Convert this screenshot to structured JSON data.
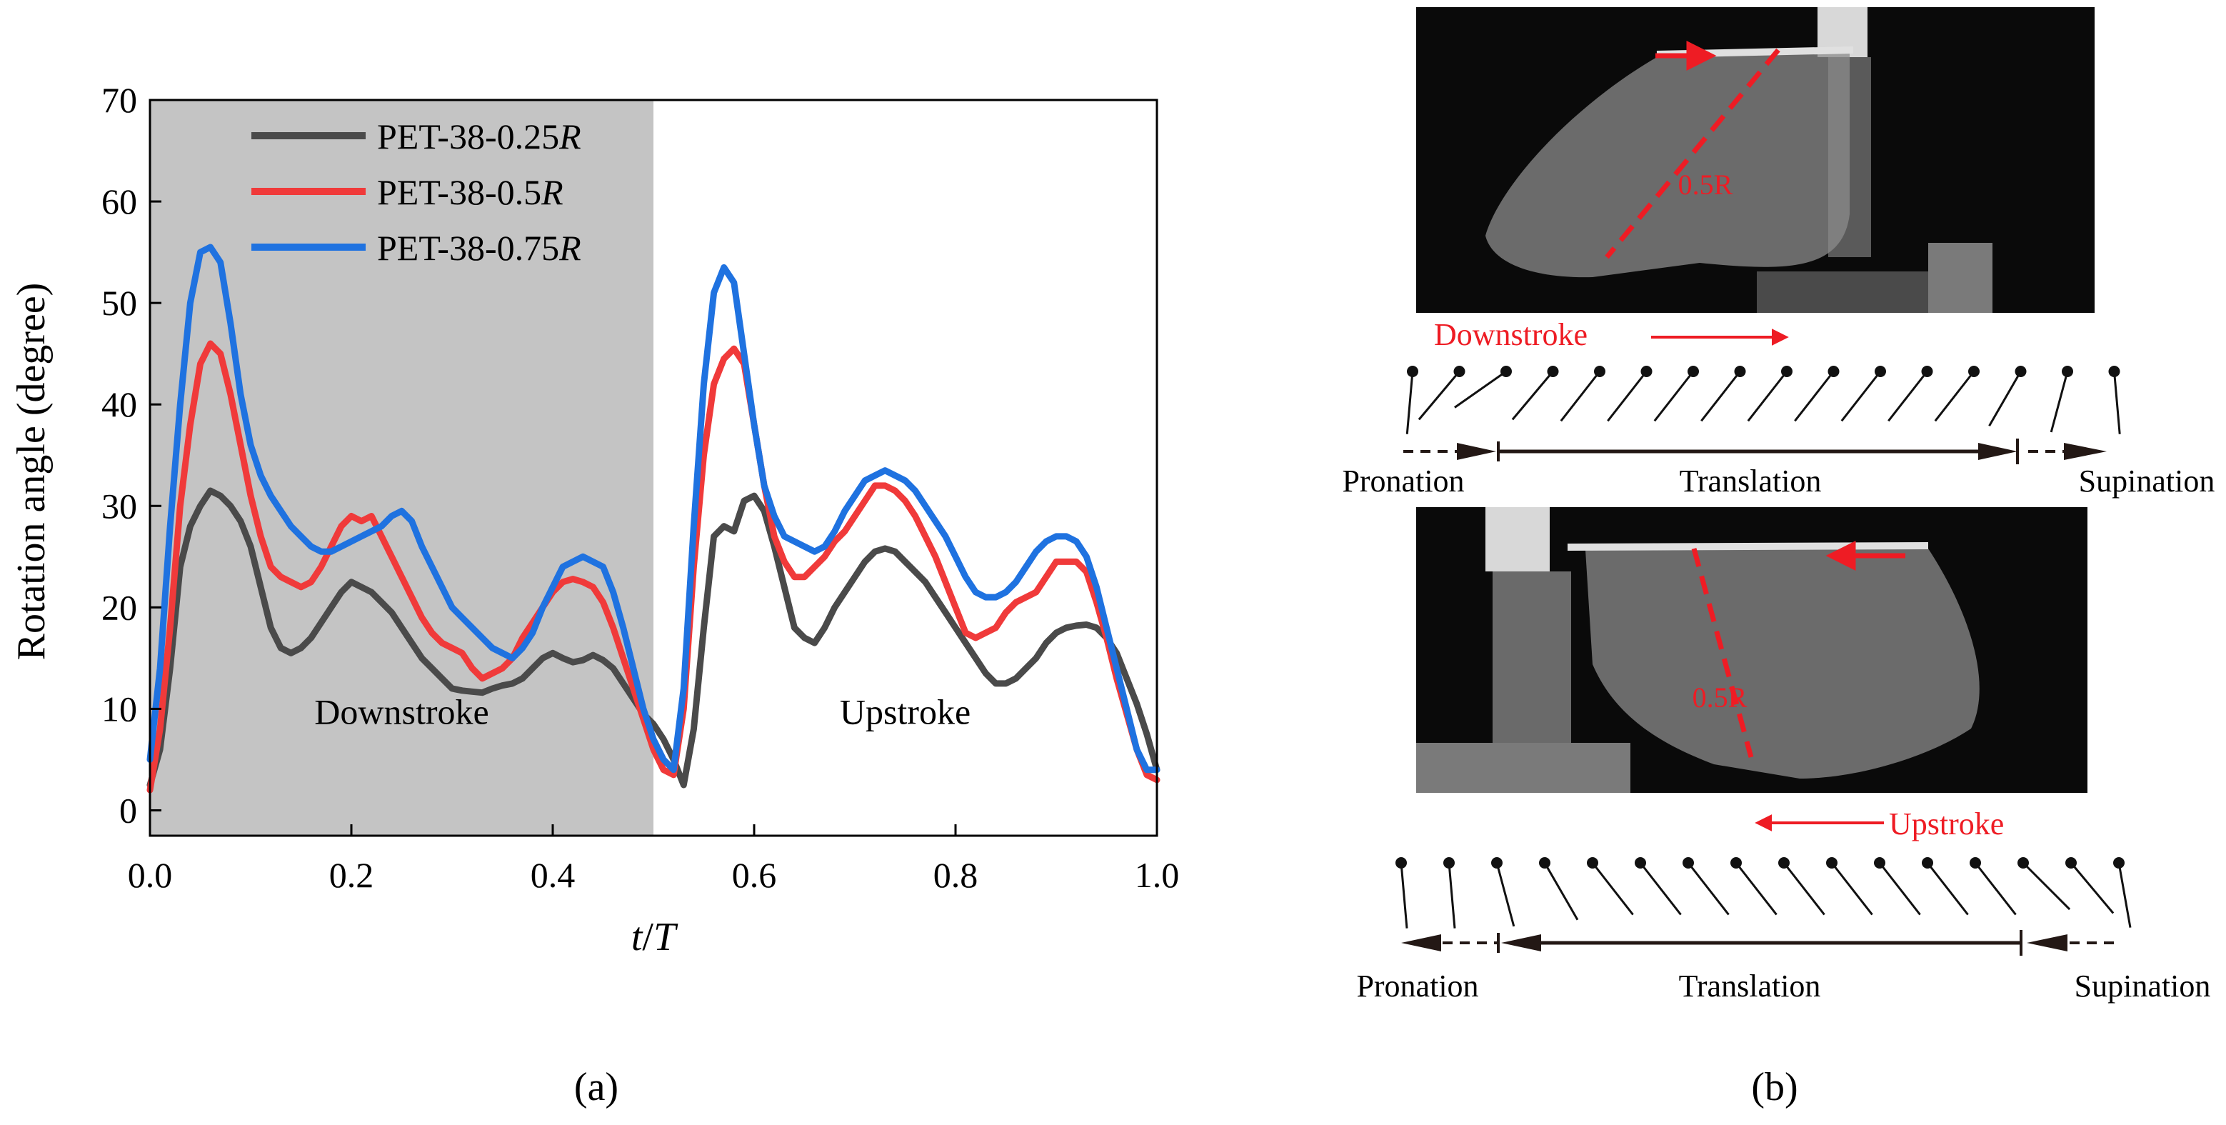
{
  "chart_data": {
    "type": "line",
    "panel_label": "(a)",
    "xlabel": "t/T",
    "xlabel_italic_parts": [
      "t",
      "T"
    ],
    "ylabel": "Rotation angle (degree)",
    "xlim": [
      0.0,
      1.0
    ],
    "ylim": [
      -2.5,
      70
    ],
    "xticks": [
      0.0,
      0.2,
      0.4,
      0.6,
      0.8,
      1.0
    ],
    "xtick_labels": [
      "0.0",
      "0.2",
      "0.4",
      "0.6",
      "0.8",
      "1.0"
    ],
    "yticks": [
      0,
      10,
      20,
      30,
      40,
      50,
      60,
      70
    ],
    "ytick_labels": [
      "0",
      "10",
      "20",
      "30",
      "40",
      "50",
      "60",
      "70"
    ],
    "shaded_region": {
      "x": [
        0.0,
        0.5
      ],
      "color": "#c4c4c4"
    },
    "annotations": [
      {
        "text": "Downstroke",
        "x": 0.25,
        "y": 8.5
      },
      {
        "text": "Upstroke",
        "x": 0.75,
        "y": 8.5
      }
    ],
    "series": [
      {
        "name_main": "PET-38-0.25",
        "name_italic": "R",
        "color": "#4a4a4a",
        "x": [
          0.0,
          0.01,
          0.02,
          0.03,
          0.04,
          0.05,
          0.06,
          0.07,
          0.08,
          0.09,
          0.1,
          0.11,
          0.12,
          0.13,
          0.14,
          0.15,
          0.16,
          0.17,
          0.18,
          0.19,
          0.2,
          0.21,
          0.22,
          0.23,
          0.24,
          0.25,
          0.26,
          0.27,
          0.28,
          0.29,
          0.3,
          0.31,
          0.32,
          0.33,
          0.34,
          0.35,
          0.36,
          0.37,
          0.38,
          0.39,
          0.4,
          0.41,
          0.42,
          0.43,
          0.44,
          0.45,
          0.46,
          0.47,
          0.48,
          0.49,
          0.5,
          0.51,
          0.52,
          0.53,
          0.54,
          0.55,
          0.56,
          0.57,
          0.58,
          0.59,
          0.6,
          0.61,
          0.62,
          0.63,
          0.64,
          0.65,
          0.66,
          0.67,
          0.68,
          0.69,
          0.7,
          0.71,
          0.72,
          0.73,
          0.74,
          0.75,
          0.76,
          0.77,
          0.78,
          0.79,
          0.8,
          0.81,
          0.82,
          0.83,
          0.84,
          0.85,
          0.86,
          0.87,
          0.88,
          0.89,
          0.9,
          0.91,
          0.92,
          0.93,
          0.94,
          0.95,
          0.96,
          0.97,
          0.98,
          0.99,
          1.0
        ],
        "values": [
          2.5,
          6,
          14,
          24,
          28,
          30,
          31.5,
          31,
          30,
          28.5,
          26,
          22,
          18,
          16,
          15.5,
          16,
          17,
          18.5,
          20,
          21.5,
          22.5,
          22,
          21.5,
          20.5,
          19.5,
          18,
          16.5,
          15,
          14,
          13,
          12,
          11.8,
          11.7,
          11.6,
          12,
          12.3,
          12.5,
          13,
          14,
          15,
          15.5,
          15,
          14.6,
          14.8,
          15.3,
          14.8,
          14,
          12.5,
          11,
          9.5,
          8.5,
          7,
          5,
          2.5,
          8,
          18,
          27,
          28,
          27.5,
          30.5,
          31,
          29.5,
          26,
          22,
          18,
          17,
          16.5,
          18,
          20,
          21.5,
          23,
          24.5,
          25.5,
          25.8,
          25.5,
          24.5,
          23.5,
          22.5,
          21,
          19.5,
          18,
          16.5,
          15,
          13.5,
          12.5,
          12.5,
          13,
          14,
          15,
          16.5,
          17.5,
          18,
          18.2,
          18.3,
          18,
          17,
          15.5,
          13,
          10.5,
          7.5,
          4
        ]
      },
      {
        "name_main": "PET-38-0.5",
        "name_italic": "R",
        "color": "#f03a3a",
        "x": [
          0.0,
          0.01,
          0.02,
          0.03,
          0.04,
          0.05,
          0.06,
          0.07,
          0.08,
          0.09,
          0.1,
          0.11,
          0.12,
          0.13,
          0.14,
          0.15,
          0.16,
          0.17,
          0.18,
          0.19,
          0.2,
          0.21,
          0.22,
          0.23,
          0.24,
          0.25,
          0.26,
          0.27,
          0.28,
          0.29,
          0.3,
          0.31,
          0.32,
          0.33,
          0.34,
          0.35,
          0.36,
          0.37,
          0.38,
          0.39,
          0.4,
          0.41,
          0.42,
          0.43,
          0.44,
          0.45,
          0.46,
          0.47,
          0.48,
          0.49,
          0.5,
          0.51,
          0.52,
          0.53,
          0.54,
          0.55,
          0.56,
          0.57,
          0.58,
          0.59,
          0.6,
          0.61,
          0.62,
          0.63,
          0.64,
          0.65,
          0.66,
          0.67,
          0.68,
          0.69,
          0.7,
          0.71,
          0.72,
          0.73,
          0.74,
          0.75,
          0.76,
          0.77,
          0.78,
          0.79,
          0.8,
          0.81,
          0.82,
          0.83,
          0.84,
          0.85,
          0.86,
          0.87,
          0.88,
          0.89,
          0.9,
          0.91,
          0.92,
          0.93,
          0.94,
          0.95,
          0.96,
          0.97,
          0.98,
          0.99,
          1.0
        ],
        "values": [
          2,
          8,
          18,
          30,
          38,
          44,
          46,
          45,
          41,
          36,
          31,
          27,
          24,
          23,
          22.5,
          22,
          22.5,
          24,
          26,
          28,
          29,
          28.5,
          29,
          27,
          25,
          23,
          21,
          19,
          17.5,
          16.5,
          16,
          15.5,
          14,
          13,
          13.5,
          14,
          15,
          17,
          18.5,
          20,
          21.5,
          22.5,
          22.8,
          22.5,
          22,
          20.5,
          18,
          15,
          12,
          9,
          6,
          4,
          3.5,
          10,
          24,
          35,
          42,
          44.5,
          45.5,
          44,
          38,
          32,
          27,
          24.5,
          23,
          23,
          24,
          25,
          26.5,
          27.5,
          29,
          30.5,
          32,
          32,
          31.5,
          30.5,
          29,
          27,
          25,
          22.5,
          20,
          17.5,
          17,
          17.5,
          18,
          19.5,
          20.5,
          21,
          21.5,
          23,
          24.5,
          24.5,
          24.5,
          23.5,
          20.5,
          17,
          13,
          9.5,
          6,
          3.5,
          3
        ]
      },
      {
        "name_main": "PET-38-0.75",
        "name_italic": "R",
        "color": "#1f72e0",
        "x": [
          0.0,
          0.01,
          0.02,
          0.03,
          0.04,
          0.05,
          0.06,
          0.07,
          0.08,
          0.09,
          0.1,
          0.11,
          0.12,
          0.13,
          0.14,
          0.15,
          0.16,
          0.17,
          0.18,
          0.19,
          0.2,
          0.21,
          0.22,
          0.23,
          0.24,
          0.25,
          0.26,
          0.27,
          0.28,
          0.29,
          0.3,
          0.31,
          0.32,
          0.33,
          0.34,
          0.35,
          0.36,
          0.37,
          0.38,
          0.39,
          0.4,
          0.41,
          0.42,
          0.43,
          0.44,
          0.45,
          0.46,
          0.47,
          0.48,
          0.49,
          0.5,
          0.51,
          0.52,
          0.53,
          0.54,
          0.55,
          0.56,
          0.57,
          0.58,
          0.59,
          0.6,
          0.61,
          0.62,
          0.63,
          0.64,
          0.65,
          0.66,
          0.67,
          0.68,
          0.69,
          0.7,
          0.71,
          0.72,
          0.73,
          0.74,
          0.75,
          0.76,
          0.77,
          0.78,
          0.79,
          0.8,
          0.81,
          0.82,
          0.83,
          0.84,
          0.85,
          0.86,
          0.87,
          0.88,
          0.89,
          0.9,
          0.91,
          0.92,
          0.93,
          0.94,
          0.95,
          0.96,
          0.97,
          0.98,
          0.99,
          1.0
        ],
        "values": [
          5,
          14,
          28,
          40,
          50,
          55,
          55.5,
          54,
          48,
          41,
          36,
          33,
          31,
          29.5,
          28,
          27,
          26,
          25.5,
          25.5,
          26,
          26.5,
          27,
          27.5,
          28,
          29,
          29.5,
          28.5,
          26,
          24,
          22,
          20,
          19,
          18,
          17,
          16,
          15.5,
          15,
          16,
          17.5,
          20,
          22,
          24,
          24.5,
          25,
          24.5,
          24,
          21.5,
          18,
          14,
          10,
          7,
          5,
          4,
          12,
          28,
          42,
          51,
          53.5,
          52,
          45,
          38,
          32,
          29,
          27,
          26.5,
          26,
          25.5,
          26,
          27.5,
          29.5,
          31,
          32.5,
          33,
          33.5,
          33,
          32.5,
          31.5,
          30,
          28.5,
          27,
          25,
          23,
          21.5,
          21,
          21,
          21.5,
          22.5,
          24,
          25.5,
          26.5,
          27,
          27,
          26.5,
          25,
          22,
          18,
          14,
          10,
          6,
          4,
          4
        ]
      }
    ]
  },
  "panel_b": {
    "label": "(b)",
    "measure_label_top": "0.5R",
    "measure_label_bottom": "0.5R",
    "downstroke": {
      "arrow_label": "Downstroke",
      "phases": [
        "Pronation",
        "Translation",
        "Supination"
      ]
    },
    "upstroke": {
      "arrow_label": "Upstroke",
      "phases": [
        "Pronation",
        "Translation",
        "Supination"
      ]
    },
    "colors": {
      "red": "#ee1c24",
      "dark": "#231815",
      "photo_bg": "#0a0a0a"
    }
  }
}
